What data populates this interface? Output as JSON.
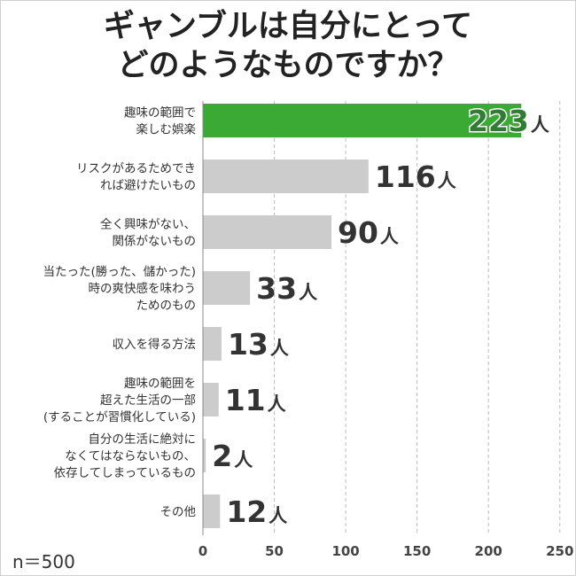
{
  "chart_data": {
    "type": "bar",
    "orientation": "horizontal",
    "title": [
      "ギャンブルは自分にとって",
      "どのようなものですか？"
    ],
    "categories": [
      [
        "趣味の範囲で",
        "楽しむ娯楽"
      ],
      [
        "リスクがあるためでき",
        "れば避けたいもの"
      ],
      [
        "全く興味がない、",
        "関係がないもの"
      ],
      [
        "当たった(勝った、儲かった)",
        "時の爽快感を味わう",
        "ためのもの"
      ],
      [
        "収入を得る方法"
      ],
      [
        "趣味の範囲を",
        "超えた生活の一部",
        "(することが習慣化している)"
      ],
      [
        "自分の生活に絶対に",
        "なくてはならないもの、",
        "依存してしまっているもの"
      ],
      [
        "その他"
      ]
    ],
    "values": [
      223,
      116,
      90,
      33,
      13,
      11,
      2,
      12
    ],
    "unit": "人",
    "xlim": [
      0,
      250
    ],
    "ticks": [
      0,
      50,
      100,
      150,
      200,
      250
    ],
    "grid": true,
    "highlight_index": 0,
    "colors": {
      "highlight": "#3aaa35",
      "bar": "#cccccc",
      "highlight_text": "#2e7d32",
      "text": "#333333",
      "grid": "#bbbbbb",
      "axis": "#888888"
    }
  },
  "note": "n＝500"
}
